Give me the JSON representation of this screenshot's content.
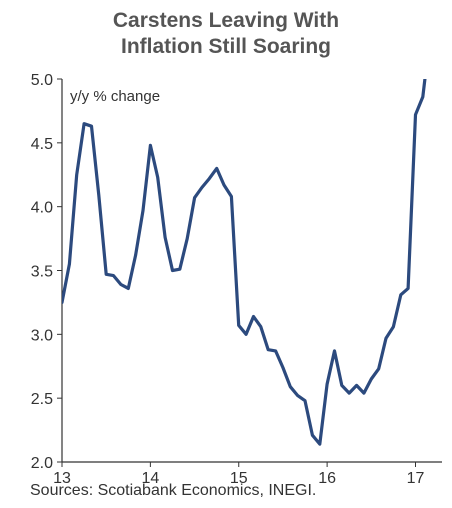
{
  "chart_data": {
    "type": "line",
    "title_lines": [
      "Carstens Leaving With",
      "Inflation Still Soaring"
    ],
    "ylabel": "y/y % change",
    "source": "Sources: Scotiabank Economics, INEGI.",
    "xlim": [
      13,
      17.3
    ],
    "ylim": [
      2.0,
      5.0
    ],
    "x_ticks": [
      13,
      14,
      15,
      16,
      17
    ],
    "x_tick_labels": [
      "13",
      "14",
      "15",
      "16",
      "17"
    ],
    "y_ticks": [
      2.0,
      2.5,
      3.0,
      3.5,
      4.0,
      4.5,
      5.0
    ],
    "y_tick_labels": [
      "2.0",
      "2.5",
      "3.0",
      "3.5",
      "4.0",
      "4.5",
      "5.0"
    ],
    "line_color": "#2c4a7e",
    "series": [
      {
        "x": [
          13.0,
          13.0833,
          13.1667,
          13.25,
          13.3333,
          13.4167,
          13.5,
          13.5833,
          13.6667,
          13.75,
          13.8333,
          13.9167,
          14.0,
          14.0833,
          14.1667,
          14.25,
          14.3333,
          14.4167,
          14.5,
          14.5833,
          14.6667,
          14.75,
          14.8333,
          14.9167,
          15.0,
          15.0833,
          15.1667,
          15.25,
          15.3333,
          15.4167,
          15.5,
          15.5833,
          15.6667,
          15.75,
          15.8333,
          15.9167,
          16.0,
          16.0833,
          16.1667,
          16.25,
          16.3333,
          16.4167,
          16.5,
          16.5833,
          16.6667,
          16.75,
          16.8333,
          16.9167,
          17.0,
          17.0833,
          17.1667
        ],
        "values": [
          3.25,
          3.55,
          4.25,
          4.65,
          4.63,
          4.09,
          3.47,
          3.46,
          3.39,
          3.36,
          3.62,
          3.97,
          4.48,
          4.23,
          3.76,
          3.5,
          3.51,
          3.75,
          4.07,
          4.15,
          4.22,
          4.3,
          4.17,
          4.08,
          3.07,
          3.0,
          3.14,
          3.06,
          2.88,
          2.87,
          2.74,
          2.59,
          2.52,
          2.48,
          2.21,
          2.14,
          2.61,
          2.87,
          2.6,
          2.54,
          2.6,
          2.54,
          2.65,
          2.73,
          2.97,
          3.06,
          3.31,
          3.36,
          4.72,
          4.86,
          5.35
        ]
      }
    ]
  }
}
